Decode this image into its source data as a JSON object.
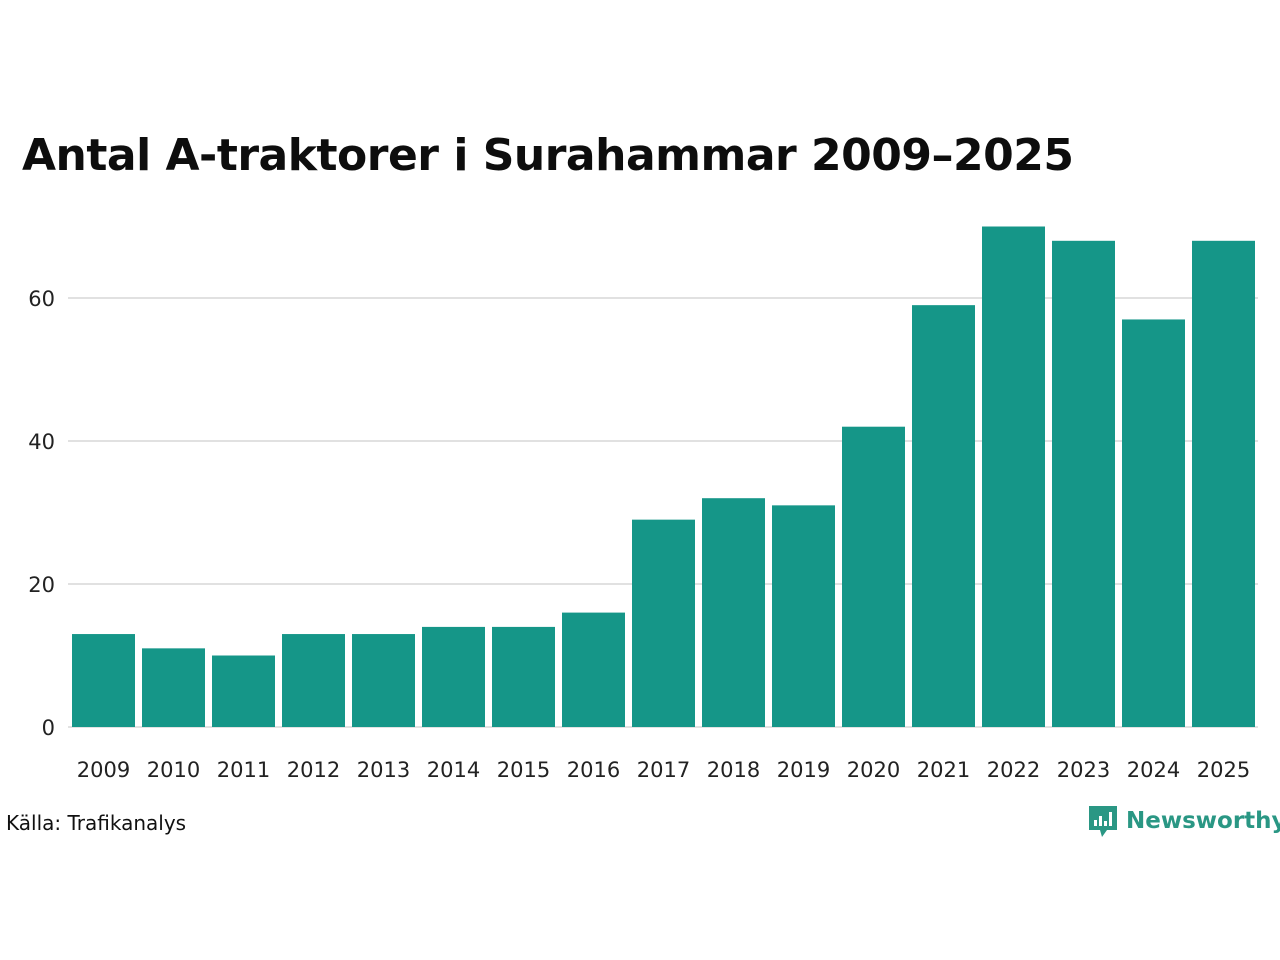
{
  "chart_data": {
    "type": "bar",
    "title": "Antal A-traktorer i Surahammar 2009–2025",
    "categories": [
      "2009",
      "2010",
      "2011",
      "2012",
      "2013",
      "2014",
      "2015",
      "2016",
      "2017",
      "2018",
      "2019",
      "2020",
      "2021",
      "2022",
      "2023",
      "2024",
      "2025"
    ],
    "values": [
      13,
      11,
      10,
      13,
      13,
      14,
      14,
      16,
      29,
      32,
      31,
      42,
      59,
      70,
      68,
      57,
      68
    ],
    "xlabel": "",
    "ylabel": "",
    "ylim": [
      0,
      70
    ],
    "yticks": [
      "0",
      "20",
      "40",
      "60"
    ],
    "grid": true,
    "bar_color": "#159688"
  },
  "footer": {
    "source": "Källa: Trafikanalys",
    "brand": "Newsworthy",
    "brand_color": "#2a9784"
  }
}
